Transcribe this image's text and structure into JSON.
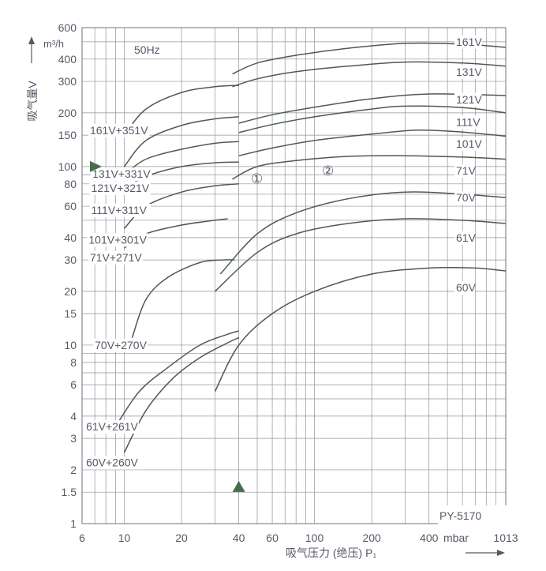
{
  "chart_data": {
    "type": "line",
    "x_scale": "log",
    "y_scale": "log",
    "xlim": [
      6,
      1013
    ],
    "ylim": [
      1,
      600
    ],
    "frequency": "50Hz",
    "model": "PY-5170",
    "region_labels": [
      "①",
      "②"
    ],
    "ylabel": "吸气量V",
    "yunit": "m³/h",
    "xlabel": "吸气压力 (绝压) P₁",
    "xunit": "mbar",
    "x_ticks": [
      {
        "v": 6,
        "t": "6"
      },
      {
        "v": 10,
        "t": "10"
      },
      {
        "v": 20,
        "t": "20"
      },
      {
        "v": 40,
        "t": "40"
      },
      {
        "v": 60,
        "t": "60"
      },
      {
        "v": 100,
        "t": "100"
      },
      {
        "v": 200,
        "t": "200"
      },
      {
        "v": 400,
        "t": "400"
      },
      {
        "v": 1013,
        "t": "1013"
      }
    ],
    "y_ticks": [
      {
        "v": 1,
        "t": "1"
      },
      {
        "v": 1.5,
        "t": "1.5"
      },
      {
        "v": 2,
        "t": "2"
      },
      {
        "v": 3,
        "t": "3"
      },
      {
        "v": 4,
        "t": "4"
      },
      {
        "v": 6,
        "t": "6"
      },
      {
        "v": 8,
        "t": "8"
      },
      {
        "v": 10,
        "t": "10"
      },
      {
        "v": 15,
        "t": "15"
      },
      {
        "v": 20,
        "t": "20"
      },
      {
        "v": 30,
        "t": "30"
      },
      {
        "v": 40,
        "t": "40"
      },
      {
        "v": 60,
        "t": "60"
      },
      {
        "v": 80,
        "t": "80"
      },
      {
        "v": 100,
        "t": "100"
      },
      {
        "v": 150,
        "t": "150"
      },
      {
        "v": 200,
        "t": "200"
      },
      {
        "v": 300,
        "t": "300"
      },
      {
        "v": 400,
        "t": "400"
      },
      {
        "v": 600,
        "t": "600"
      }
    ],
    "series": [
      {
        "name": "161V",
        "label_at": [
          650,
          500
        ],
        "x": [
          37,
          50,
          80,
          150,
          300,
          600,
          1013
        ],
        "y": [
          330,
          380,
          420,
          460,
          490,
          485,
          465
        ]
      },
      {
        "name": "131V",
        "label_at": [
          650,
          340
        ],
        "x": [
          37,
          50,
          80,
          150,
          300,
          600,
          1013
        ],
        "y": [
          280,
          310,
          340,
          365,
          385,
          380,
          365
        ]
      },
      {
        "name": "121V",
        "label_at": [
          650,
          238
        ],
        "x": [
          40,
          60,
          100,
          200,
          400,
          1013
        ],
        "y": [
          175,
          195,
          215,
          240,
          255,
          250
        ]
      },
      {
        "name": "111V",
        "label_at": [
          650,
          178
        ],
        "x": [
          40,
          60,
          100,
          200,
          300,
          600,
          1013
        ],
        "y": [
          155,
          172,
          190,
          210,
          218,
          214,
          200
        ]
      },
      {
        "name": "101V",
        "label_at": [
          650,
          134
        ],
        "x": [
          40,
          60,
          100,
          200,
          350,
          600,
          1013
        ],
        "y": [
          115,
          127,
          140,
          152,
          160,
          156,
          148
        ]
      },
      {
        "name": "71V",
        "label_at": [
          650,
          95
        ],
        "x": [
          37,
          50,
          80,
          150,
          300,
          600,
          1013
        ],
        "y": [
          85,
          100,
          108,
          114,
          115,
          113,
          110
        ]
      },
      {
        "name": "70V",
        "label_at": [
          650,
          67
        ],
        "x": [
          32,
          50,
          80,
          150,
          300,
          600,
          1013
        ],
        "y": [
          25,
          42,
          55,
          66,
          72,
          70,
          67
        ]
      },
      {
        "name": "61V",
        "label_at": [
          650,
          40
        ],
        "x": [
          30,
          50,
          80,
          150,
          300,
          600,
          1013
        ],
        "y": [
          20,
          33,
          42,
          48,
          51,
          50,
          48
        ]
      },
      {
        "name": "60V",
        "label_at": [
          650,
          21
        ],
        "x": [
          30,
          40,
          60,
          100,
          200,
          400,
          700,
          1013
        ],
        "y": [
          5.5,
          10,
          15,
          20,
          25,
          27,
          27,
          26
        ]
      },
      {
        "name": "161V+351V",
        "label_at": [
          6.6,
          160
        ],
        "x": [
          10,
          13,
          20,
          30,
          40
        ],
        "y": [
          150,
          210,
          260,
          280,
          285
        ]
      },
      {
        "name": "131V+331V",
        "label_at": [
          6.8,
          91
        ],
        "x": [
          10,
          13,
          20,
          30,
          40
        ],
        "y": [
          100,
          140,
          170,
          185,
          190
        ]
      },
      {
        "name": "121V+321V",
        "label_at": [
          6.7,
          76
        ],
        "x": [
          10,
          13,
          20,
          30,
          40
        ],
        "y": [
          90,
          110,
          125,
          135,
          138
        ]
      },
      {
        "name": "111V+311V",
        "label_at": [
          6.7,
          57
        ],
        "x": [
          10,
          13,
          20,
          30,
          40
        ],
        "y": [
          75,
          88,
          100,
          105,
          106
        ]
      },
      {
        "name": "101V+301V",
        "label_at": [
          6.5,
          39
        ],
        "x": [
          10,
          13,
          20,
          30,
          40
        ],
        "y": [
          45,
          60,
          72,
          78,
          80
        ]
      },
      {
        "name": "71V+271V",
        "label_at": [
          6.6,
          31
        ],
        "x": [
          10,
          13,
          20,
          30,
          35
        ],
        "y": [
          35,
          42,
          47,
          50,
          51
        ]
      },
      {
        "name": "70V+270V",
        "label_at": [
          7.0,
          10
        ],
        "x": [
          11,
          13,
          17,
          25,
          33,
          38
        ],
        "y": [
          11,
          18,
          24,
          29,
          30,
          30
        ]
      },
      {
        "name": "61V+261V",
        "label_at": [
          6.3,
          3.5
        ],
        "x": [
          9,
          12,
          17,
          25,
          35,
          40
        ],
        "y": [
          3.5,
          5.5,
          7.5,
          10,
          11.5,
          12
        ]
      },
      {
        "name": "60V+260V",
        "label_at": [
          6.3,
          2.2
        ],
        "x": [
          10,
          13,
          18,
          25,
          35,
          40
        ],
        "y": [
          2.5,
          4.3,
          6.5,
          8.5,
          10.3,
          11
        ]
      }
    ],
    "grid": true,
    "markers": [
      {
        "shape": "triangle-right",
        "x": 6,
        "y": 100
      },
      {
        "shape": "triangle-up",
        "x": 40,
        "y": 1.6
      }
    ]
  }
}
